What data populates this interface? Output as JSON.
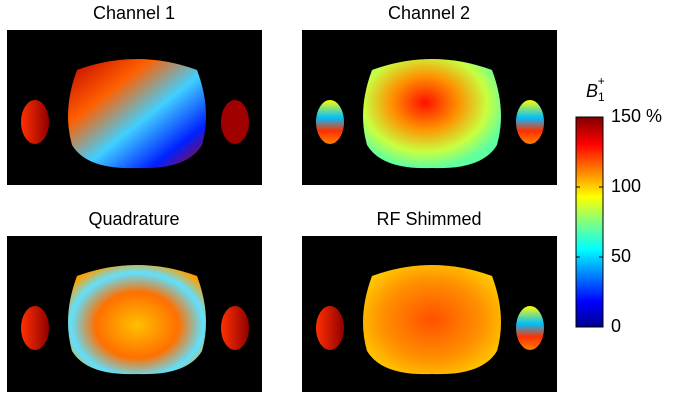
{
  "panels": [
    {
      "title": "Channel 1"
    },
    {
      "title": "Channel 2"
    },
    {
      "title": "Quadrature"
    },
    {
      "title": "RF Shimmed"
    }
  ],
  "colorbar": {
    "label": {
      "base": "B",
      "sub": "1",
      "sup": "+"
    },
    "lim": [
      0,
      150
    ],
    "ticks": [
      {
        "value": 150,
        "label": "150 %"
      },
      100,
      50,
      0
    ]
  }
}
